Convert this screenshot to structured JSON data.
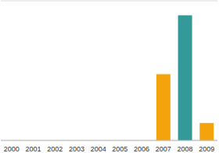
{
  "chart_data": {
    "type": "bar",
    "categories": [
      "2000",
      "2001",
      "2002",
      "2003",
      "2004",
      "2005",
      "2006",
      "2007",
      "2008",
      "2009"
    ],
    "values": [
      0,
      0,
      0,
      0,
      0,
      0,
      0,
      2.85,
      5.38,
      0.75
    ],
    "colors": [
      "#f5a30c",
      "#f5a30c",
      "#f5a30c",
      "#f5a30c",
      "#f5a30c",
      "#f5a30c",
      "#f5a30c",
      "#f5a30c",
      "#339a99",
      "#f5a30c"
    ],
    "ylim": [
      0,
      6
    ],
    "yticks": [
      0,
      1,
      2,
      3,
      4,
      5,
      6
    ],
    "grid": true,
    "tick_labels": "x"
  }
}
